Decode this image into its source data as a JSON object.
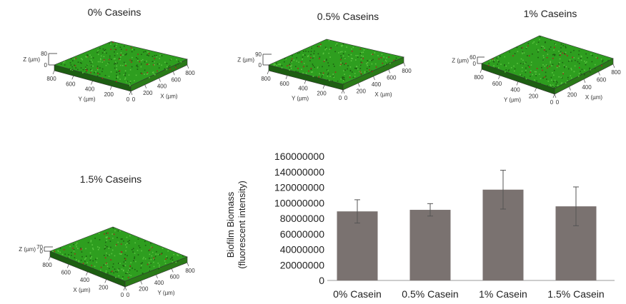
{
  "panels": [
    {
      "title": "0% Caseins",
      "z_label": "Z (µm)",
      "z_ticks": [
        "80",
        "0"
      ],
      "left_axis_label": "Y (µm)",
      "right_axis_label": "X (µm)",
      "left_ticks": [
        "800",
        "600",
        "400",
        "200",
        "0"
      ],
      "right_ticks": [
        "0",
        "200",
        "400",
        "600",
        "800"
      ]
    },
    {
      "title": "0.5% Caseins",
      "z_label": "Z (µm)",
      "z_ticks": [
        "90",
        "0"
      ],
      "left_axis_label": "Y (µm)",
      "right_axis_label": "X (µm)",
      "left_ticks": [
        "800",
        "600",
        "400",
        "200",
        "0"
      ],
      "right_ticks": [
        "0",
        "200",
        "400",
        "600",
        "800"
      ]
    },
    {
      "title": "1% Caseins",
      "z_label": "Z (µm)",
      "z_ticks": [
        "60",
        "0"
      ],
      "left_axis_label": "Y (µm)",
      "right_axis_label": "X (µm)",
      "left_ticks": [
        "800",
        "600",
        "400",
        "200",
        "0"
      ],
      "right_ticks": [
        "0",
        "200",
        "400",
        "600",
        "800"
      ]
    },
    {
      "title": "1.5% Caseins",
      "z_label": "Z (µm)",
      "z_ticks": [
        "70",
        "0"
      ],
      "left_axis_label": "X (µm)",
      "right_axis_label": "Y (µm)",
      "left_ticks": [
        "800",
        "600",
        "400",
        "200",
        "0"
      ],
      "right_ticks": [
        "0",
        "200",
        "400",
        "600",
        "800"
      ]
    }
  ],
  "colors": {
    "biofilm_green": "#2e9e1f",
    "biofilm_dark": "#1d5e12",
    "biofilm_red": "#a3281f",
    "bar": "#7a7270"
  },
  "chart_data": {
    "type": "bar",
    "categories": [
      "0% Casein",
      "0.5% Casein",
      "1% Casein",
      "1.5% Casein"
    ],
    "values": [
      89000000,
      91000000,
      117000000,
      95500000
    ],
    "errors": [
      15000000,
      8000000,
      25000000,
      25000000
    ],
    "ylabel_line1": "Biofilm Biomass",
    "ylabel_line2": "(fluorescent intensity)",
    "ylim": [
      0,
      160000000
    ],
    "yticks": [
      0,
      20000000,
      40000000,
      60000000,
      80000000,
      100000000,
      120000000,
      140000000,
      160000000
    ],
    "grid": false,
    "legend": "none"
  }
}
